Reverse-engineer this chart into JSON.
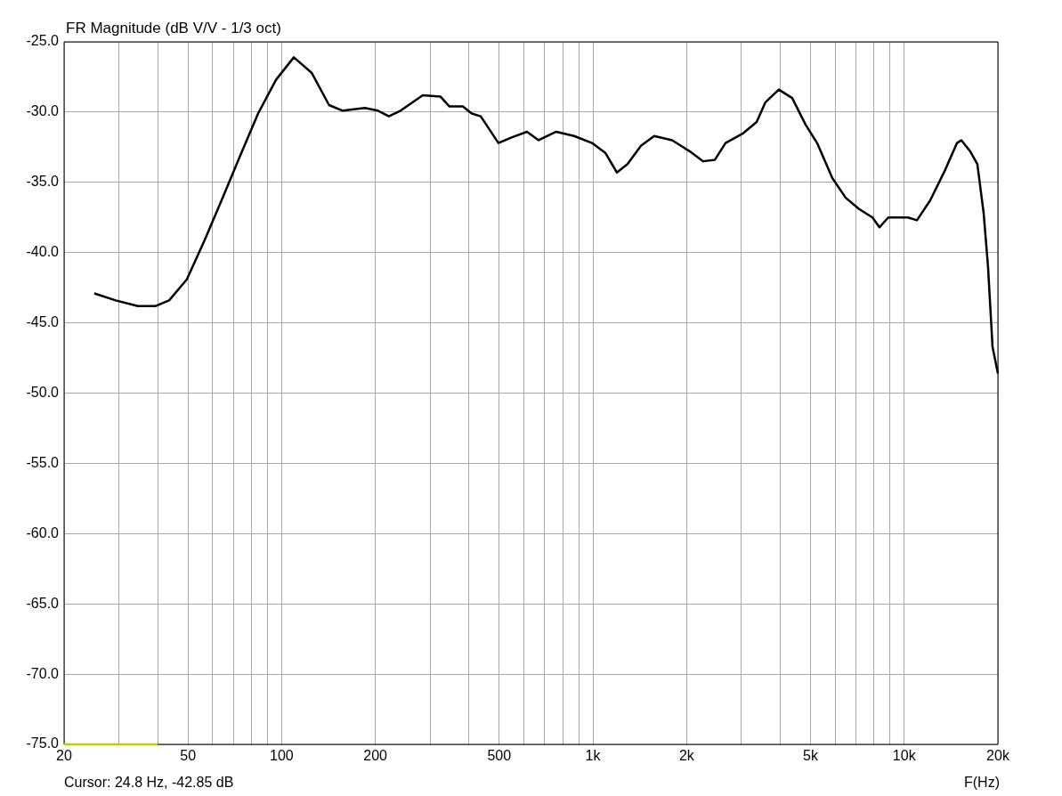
{
  "chart_data": {
    "type": "line",
    "title": "FR Magnitude (dB V/V - 1/3 oct)",
    "xlabel": "F(Hz)",
    "log": "x",
    "grid": true,
    "annotations": [
      "Cursor: 24.8 Hz, -42.85 dB"
    ],
    "xlim": [
      20,
      20000
    ],
    "xticks": [
      20,
      {
        "value": 30,
        "label": null
      },
      {
        "value": 40,
        "label": null
      },
      50,
      {
        "value": 60,
        "label": null
      },
      {
        "value": 70,
        "label": null
      },
      {
        "value": 80,
        "label": null
      },
      {
        "value": 90,
        "label": null
      },
      100,
      200,
      {
        "value": 300,
        "label": null
      },
      {
        "value": 400,
        "label": null
      },
      500,
      {
        "value": 600,
        "label": null
      },
      {
        "value": 700,
        "label": null
      },
      {
        "value": 800,
        "label": null
      },
      {
        "value": 900,
        "label": null
      },
      {
        "value": 1000,
        "label": "1k"
      },
      {
        "value": 2000,
        "label": "2k"
      },
      {
        "value": 3000,
        "label": null
      },
      {
        "value": 4000,
        "label": null
      },
      {
        "value": 5000,
        "label": "5k"
      },
      {
        "value": 6000,
        "label": null
      },
      {
        "value": 7000,
        "label": null
      },
      {
        "value": 8000,
        "label": null
      },
      {
        "value": 9000,
        "label": null
      },
      {
        "value": 10000,
        "label": "10k"
      },
      {
        "value": 20000,
        "label": "20k"
      }
    ],
    "ylim": [
      -75,
      -25
    ],
    "yticks": [
      {
        "value": -25,
        "label": "-25.0"
      },
      {
        "value": -30,
        "label": "-30.0"
      },
      {
        "value": -35,
        "label": "-35.0"
      },
      {
        "value": -40,
        "label": "-40.0"
      },
      {
        "value": -45,
        "label": "-45.0"
      },
      {
        "value": -50,
        "label": "-50.0"
      },
      {
        "value": -55,
        "label": "-55.0"
      },
      {
        "value": -60,
        "label": "-60.0"
      },
      {
        "value": -65,
        "label": "-65.0"
      },
      {
        "value": -70,
        "label": "-70.0"
      },
      {
        "value": -75,
        "label": "-75.0"
      }
    ],
    "series": [
      {
        "color": "#000000",
        "x": [
          25,
          29.3,
          34.5,
          39.4,
          43.5,
          49.6,
          56.6,
          64.6,
          73.6,
          84,
          95.9,
          109.4,
          124.8,
          142,
          157,
          185,
          204,
          221,
          241,
          284,
          324,
          346,
          382,
          408,
          436,
          497,
          548,
          614,
          669,
          762,
          870,
          993,
          1096,
          1194,
          1292,
          1426,
          1574,
          1796,
          2049,
          2260,
          2463,
          2667,
          3042,
          3357,
          3583,
          3955,
          4367,
          4823,
          5250,
          5876,
          6487,
          7162,
          7908,
          8327,
          8893,
          9620,
          10280,
          10990,
          12110,
          13550,
          14780,
          15260,
          16300,
          17180,
          18000,
          18590,
          19220,
          20000
        ],
        "values": [
          -42.9,
          -43.4,
          -43.8,
          -43.8,
          -43.4,
          -41.9,
          -39.1,
          -36.1,
          -33.1,
          -30.1,
          -27.7,
          -26.1,
          -27.2,
          -29.5,
          -29.9,
          -29.7,
          -29.9,
          -30.3,
          -29.9,
          -28.8,
          -28.9,
          -29.6,
          -29.6,
          -30.1,
          -30.3,
          -32.2,
          -31.8,
          -31.4,
          -32.0,
          -31.4,
          -31.7,
          -32.2,
          -32.9,
          -34.3,
          -33.7,
          -32.4,
          -31.7,
          -32.0,
          -32.8,
          -33.5,
          -33.4,
          -32.2,
          -31.5,
          -30.7,
          -29.3,
          -28.4,
          -29.0,
          -30.9,
          -32.2,
          -34.7,
          -36.1,
          -36.9,
          -37.5,
          -38.2,
          -37.5,
          -37.5,
          -37.5,
          -37.7,
          -36.3,
          -34.1,
          -32.2,
          -32.0,
          -32.8,
          -33.7,
          -37.2,
          -41.0,
          -46.7,
          -48.6
        ]
      },
      {
        "color": "#c8c800",
        "x": [
          20,
          40
        ],
        "values": [
          -75,
          -75
        ]
      }
    ]
  }
}
